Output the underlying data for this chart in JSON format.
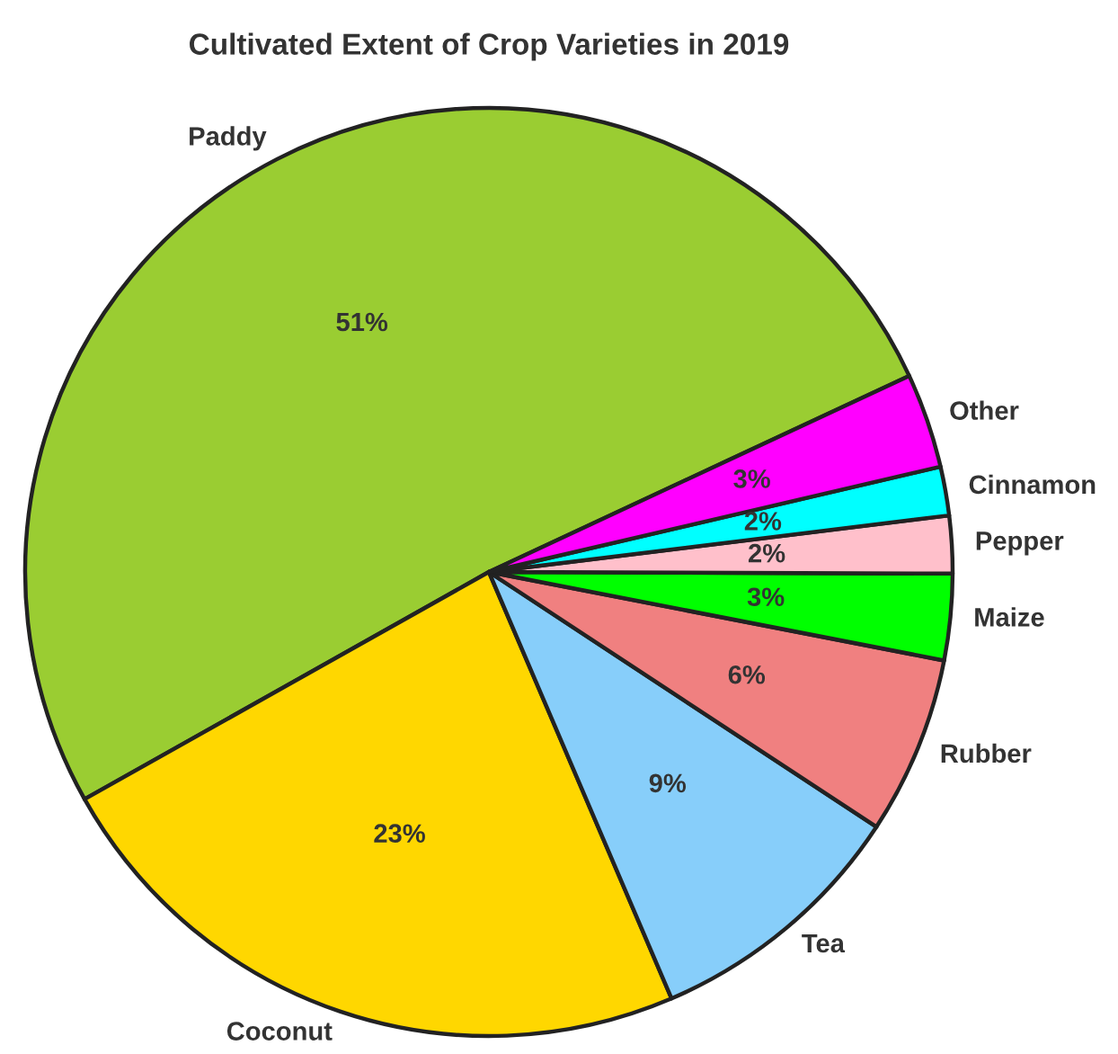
{
  "chart_data": {
    "type": "pie",
    "title": "Cultivated Extent of Crop Varieties in 2019",
    "categories": [
      "Paddy",
      "Coconut",
      "Tea",
      "Rubber",
      "Maize",
      "Pepper",
      "Cinnamon",
      "Other"
    ],
    "values": [
      51.2,
      23.3,
      9.3,
      6.2,
      3.0,
      2.0,
      1.7,
      3.3
    ],
    "colors": [
      "#9acd32",
      "#ffd700",
      "#87cefa",
      "#f08080",
      "#00ff00",
      "#ffc0cb",
      "#00ffff",
      "#ff00ff"
    ],
    "value_labels": [
      "51%",
      "23%",
      "9%",
      "6%",
      "3%",
      "2%",
      "2%",
      "3%"
    ]
  }
}
